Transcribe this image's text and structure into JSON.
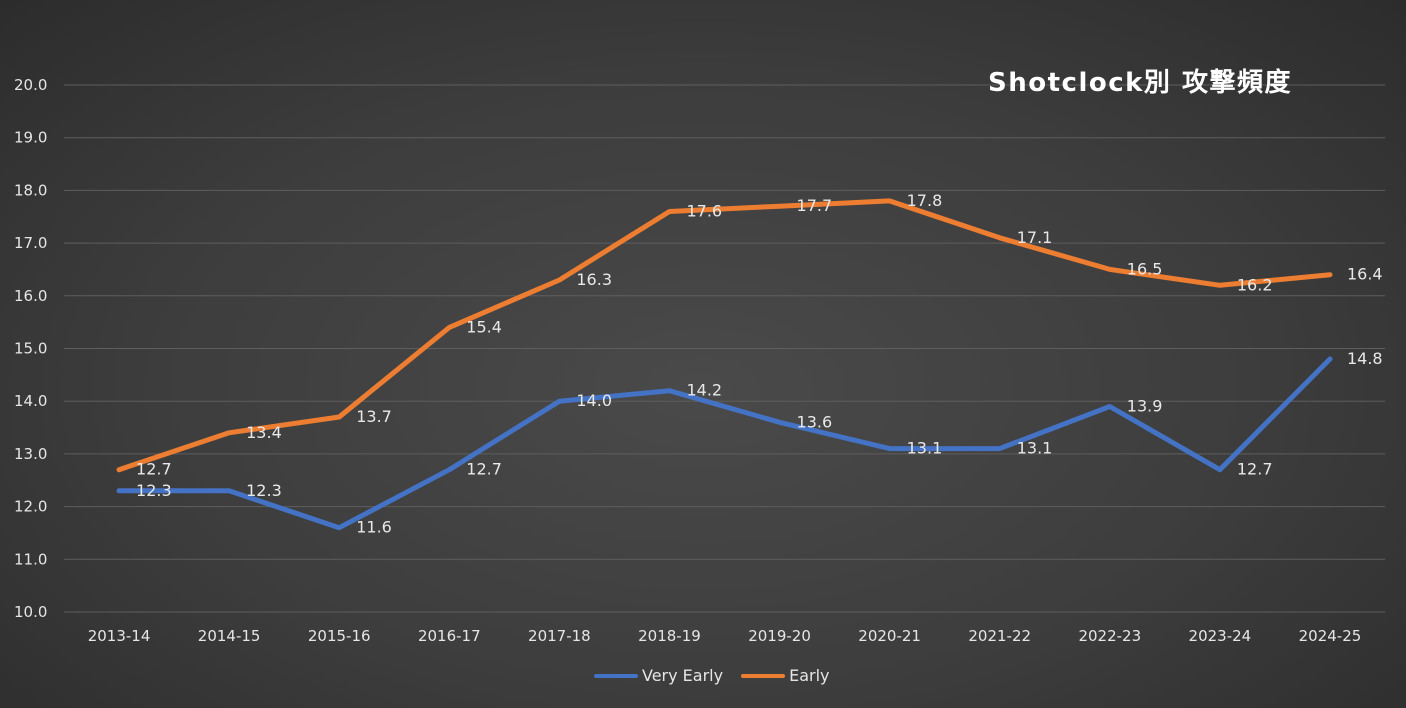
{
  "chart_data": {
    "type": "line",
    "title": "Shotclock別 攻撃頻度",
    "xlabel": "",
    "ylabel": "",
    "categories": [
      "2013-14",
      "2014-15",
      "2015-16",
      "2016-17",
      "2017-18",
      "2018-19",
      "2019-20",
      "2020-21",
      "2021-22",
      "2022-23",
      "2023-24",
      "2024-25"
    ],
    "ylim": [
      10.0,
      20.0
    ],
    "yticks": [
      "10.0",
      "11.0",
      "12.0",
      "13.0",
      "14.0",
      "15.0",
      "16.0",
      "17.0",
      "18.0",
      "19.0",
      "20.0"
    ],
    "grid": true,
    "legend_position": "bottom",
    "series": [
      {
        "name": "Very Early",
        "color": "#4472c4",
        "values": [
          12.3,
          12.3,
          11.6,
          12.7,
          14.0,
          14.2,
          13.6,
          13.1,
          13.1,
          13.9,
          12.7,
          14.8
        ],
        "labels": [
          "12.3",
          "12.3",
          "11.6",
          "12.7",
          "14.0",
          "14.2",
          "13.6",
          "13.1",
          "13.1",
          "13.9",
          "12.7",
          "14.8"
        ]
      },
      {
        "name": "Early",
        "color": "#ed7d31",
        "values": [
          12.7,
          13.4,
          13.7,
          15.4,
          16.3,
          17.6,
          17.7,
          17.8,
          17.1,
          16.5,
          16.2,
          16.4
        ],
        "labels": [
          "12.7",
          "13.4",
          "13.7",
          "15.4",
          "16.3",
          "17.6",
          "17.7",
          "17.8",
          "17.1",
          "16.5",
          "16.2",
          "16.4"
        ]
      }
    ]
  }
}
